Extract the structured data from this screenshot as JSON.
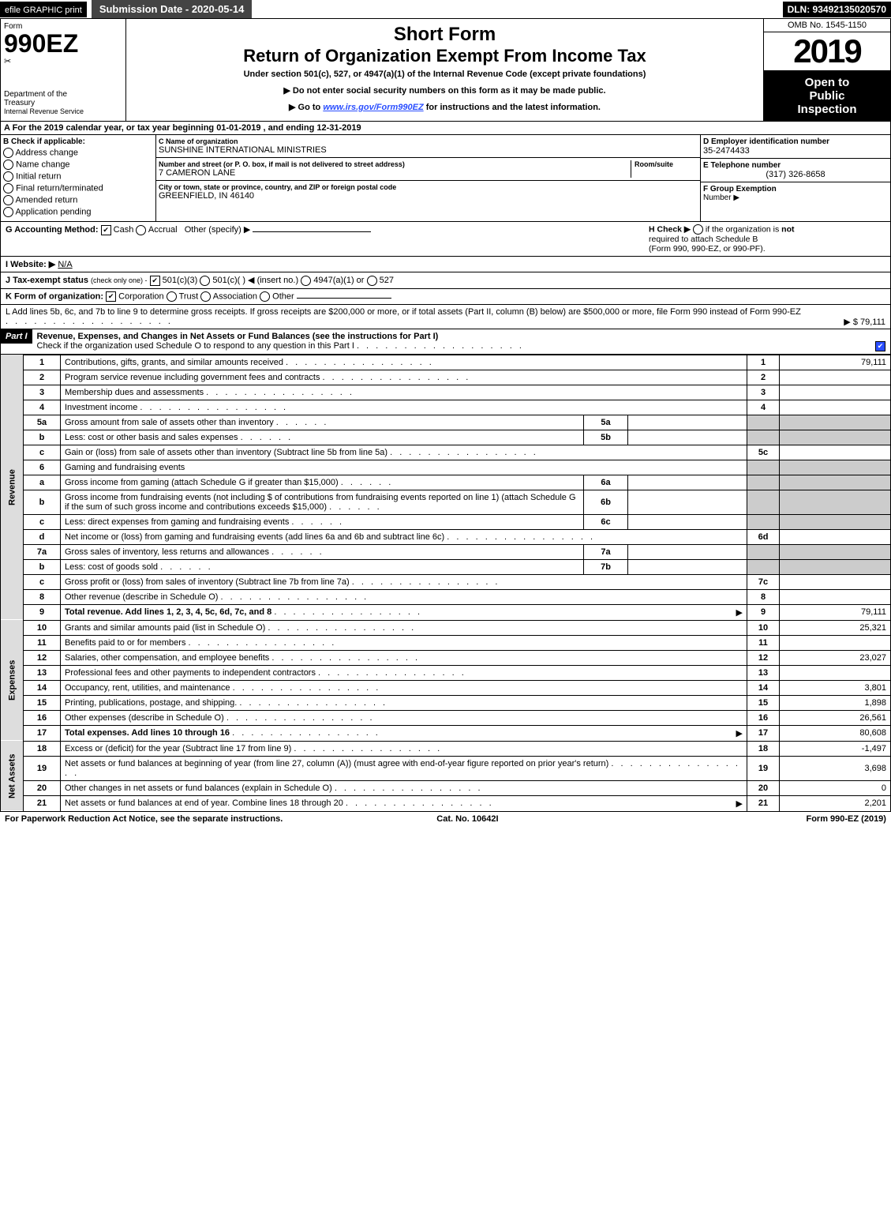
{
  "header": {
    "efile_label": "efile GRAPHIC print",
    "submission_date_label": "Submission Date - 2020-05-14",
    "dln": "DLN: 93492135020570",
    "omb": "OMB No. 1545-1150",
    "form_word": "Form",
    "form_number": "990EZ",
    "short_form": "Short Form",
    "return_title": "Return of Organization Exempt From Income Tax",
    "subsection": "Under section 501(c), 527, or 4947(a)(1) of the Internal Revenue Code (except private foundations)",
    "public_note": "▶ Do not enter social security numbers on this form as it may be made public.",
    "goto_prefix": "▶ Go to ",
    "goto_link": "www.irs.gov/Form990EZ",
    "goto_suffix": " for instructions and the latest information.",
    "year": "2019",
    "open_public_l1": "Open to",
    "open_public_l2": "Public",
    "open_public_l3": "Inspection",
    "dept_l1": "Department of the",
    "dept_l2": "Treasury",
    "dept_l3": "Internal Revenue Service"
  },
  "lineA": {
    "text": "A For the 2019 calendar year, or tax year beginning 01-01-2019 , and ending 12-31-2019"
  },
  "boxB": {
    "title": "B Check if applicable:",
    "o1": "Address change",
    "o2": "Name change",
    "o3": "Initial return",
    "o4": "Final return/terminated",
    "o5": "Amended return",
    "o6": "Application pending"
  },
  "boxC": {
    "name_label": "C Name of organization",
    "name": "SUNSHINE INTERNATIONAL MINISTRIES",
    "addr_label": "Number and street (or P. O. box, if mail is not delivered to street address)",
    "room_label": "Room/suite",
    "addr": "7 CAMERON LANE",
    "city_label": "City or town, state or province, country, and ZIP or foreign postal code",
    "city": "GREENFIELD, IN  46140"
  },
  "boxD": {
    "ein_label": "D Employer identification number",
    "ein": "35-2474433",
    "tel_label": "E Telephone number",
    "tel": "(317) 326-8658",
    "group_l1": "F Group Exemption",
    "group_l2": "Number   ▶"
  },
  "lineG": {
    "label": "G Accounting Method:",
    "cash": "Cash",
    "accrual": "Accrual",
    "other": "Other (specify) ▶"
  },
  "lineH": {
    "l1": "H  Check ▶",
    "l2": "if the organization is ",
    "l3": "not",
    "l4": "required to attach Schedule B",
    "l5": "(Form 990, 990-EZ, or 990-PF)."
  },
  "lineI": {
    "label": "I Website: ▶",
    "value": "N/A"
  },
  "lineJ": {
    "label": "J Tax-exempt status",
    "paren": "(check only one) -",
    "o1": "501(c)(3)",
    "o2": "501(c)(  )",
    "o2b": "◀ (insert no.)",
    "o3": "4947(a)(1) or",
    "o4": "527"
  },
  "lineK": {
    "label": "K Form of organization:",
    "o1": "Corporation",
    "o2": "Trust",
    "o3": "Association",
    "o4": "Other"
  },
  "lineL": {
    "text": "L Add lines 5b, 6c, and 7b to line 9 to determine gross receipts. If gross receipts are $200,000 or more, or if total assets (Part II, column (B) below) are $500,000 or more, file Form 990 instead of Form 990-EZ",
    "arrow": "▶ $ 79,111"
  },
  "partI": {
    "header": "Part I",
    "title": "Revenue, Expenses, and Changes in Net Assets or Fund Balances (see the instructions for Part I)",
    "sub": "Check if the organization used Schedule O to respond to any question in this Part I"
  },
  "sections": {
    "revenue": "Revenue",
    "expenses": "Expenses",
    "netassets": "Net Assets"
  },
  "rows": [
    {
      "n": "1",
      "desc": "Contributions, gifts, grants, and similar amounts received",
      "ln": "1",
      "amt": "79,111"
    },
    {
      "n": "2",
      "desc": "Program service revenue including government fees and contracts",
      "ln": "2",
      "amt": ""
    },
    {
      "n": "3",
      "desc": "Membership dues and assessments",
      "ln": "3",
      "amt": ""
    },
    {
      "n": "4",
      "desc": "Investment income",
      "ln": "4",
      "amt": ""
    },
    {
      "n": "5a",
      "desc": "Gross amount from sale of assets other than inventory",
      "sub": "5a",
      "subval": ""
    },
    {
      "n": "b",
      "desc": "Less: cost or other basis and sales expenses",
      "sub": "5b",
      "subval": ""
    },
    {
      "n": "c",
      "desc": "Gain or (loss) from sale of assets other than inventory (Subtract line 5b from line 5a)",
      "ln": "5c",
      "amt": ""
    },
    {
      "n": "6",
      "desc": "Gaming and fundraising events"
    },
    {
      "n": "a",
      "desc": "Gross income from gaming (attach Schedule G if greater than $15,000)",
      "sub": "6a",
      "subval": ""
    },
    {
      "n": "b",
      "desc": "Gross income from fundraising events (not including $                                 of contributions from fundraising events reported on line 1) (attach Schedule G if the sum of such gross income and contributions exceeds $15,000)",
      "sub": "6b",
      "subval": ""
    },
    {
      "n": "c",
      "desc": "Less: direct expenses from gaming and fundraising events",
      "sub": "6c",
      "subval": ""
    },
    {
      "n": "d",
      "desc": "Net income or (loss) from gaming and fundraising events (add lines 6a and 6b and subtract line 6c)",
      "ln": "6d",
      "amt": ""
    },
    {
      "n": "7a",
      "desc": "Gross sales of inventory, less returns and allowances",
      "sub": "7a",
      "subval": ""
    },
    {
      "n": "b",
      "desc": "Less: cost of goods sold",
      "sub": "7b",
      "subval": ""
    },
    {
      "n": "c",
      "desc": "Gross profit or (loss) from sales of inventory (Subtract line 7b from line 7a)",
      "ln": "7c",
      "amt": ""
    },
    {
      "n": "8",
      "desc": "Other revenue (describe in Schedule O)",
      "ln": "8",
      "amt": ""
    },
    {
      "n": "9",
      "desc": "Total revenue. Add lines 1, 2, 3, 4, 5c, 6d, 7c, and 8",
      "ln": "9",
      "amt": "79,111",
      "bold": true,
      "arrow": true
    }
  ],
  "expRows": [
    {
      "n": "10",
      "desc": "Grants and similar amounts paid (list in Schedule O)",
      "ln": "10",
      "amt": "25,321"
    },
    {
      "n": "11",
      "desc": "Benefits paid to or for members",
      "ln": "11",
      "amt": ""
    },
    {
      "n": "12",
      "desc": "Salaries, other compensation, and employee benefits",
      "ln": "12",
      "amt": "23,027"
    },
    {
      "n": "13",
      "desc": "Professional fees and other payments to independent contractors",
      "ln": "13",
      "amt": ""
    },
    {
      "n": "14",
      "desc": "Occupancy, rent, utilities, and maintenance",
      "ln": "14",
      "amt": "3,801"
    },
    {
      "n": "15",
      "desc": "Printing, publications, postage, and shipping.",
      "ln": "15",
      "amt": "1,898"
    },
    {
      "n": "16",
      "desc": "Other expenses (describe in Schedule O)",
      "ln": "16",
      "amt": "26,561"
    },
    {
      "n": "17",
      "desc": "Total expenses. Add lines 10 through 16",
      "ln": "17",
      "amt": "80,608",
      "bold": true,
      "arrow": true
    }
  ],
  "netRows": [
    {
      "n": "18",
      "desc": "Excess or (deficit) for the year (Subtract line 17 from line 9)",
      "ln": "18",
      "amt": "-1,497"
    },
    {
      "n": "19",
      "desc": "Net assets or fund balances at beginning of year (from line 27, column (A)) (must agree with end-of-year figure reported on prior year's return)",
      "ln": "19",
      "amt": "3,698"
    },
    {
      "n": "20",
      "desc": "Other changes in net assets or fund balances (explain in Schedule O)",
      "ln": "20",
      "amt": "0"
    },
    {
      "n": "21",
      "desc": "Net assets or fund balances at end of year. Combine lines 18 through 20",
      "ln": "21",
      "amt": "2,201",
      "arrow": true
    }
  ],
  "footer": {
    "left": "For Paperwork Reduction Act Notice, see the separate instructions.",
    "mid": "Cat. No. 10642I",
    "right": "Form 990-EZ (2019)"
  }
}
